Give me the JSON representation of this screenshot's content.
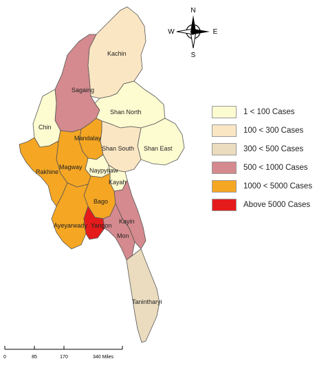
{
  "compass": {
    "n": "N",
    "s": "S",
    "e": "E",
    "w": "W"
  },
  "legend": [
    {
      "label": "1 < 100 Cases",
      "color": "#fdfbd0"
    },
    {
      "label": "100 < 300 Cases",
      "color": "#fbe6c4"
    },
    {
      "label": "300 < 500 Cases",
      "color": "#ebdcbf"
    },
    {
      "label": "500 < 1000 Cases",
      "color": "#d48a8e"
    },
    {
      "label": "1000 < 5000 Cases",
      "color": "#f5a623"
    },
    {
      "label": "Above 5000 Cases",
      "color": "#e51b1b"
    }
  ],
  "regions": {
    "kachin": {
      "label": "Kachin",
      "color": "#fbe6c4"
    },
    "sagaing": {
      "label": "Sagaing",
      "color": "#d48a8e"
    },
    "chin": {
      "label": "Chin",
      "color": "#fdfbd0"
    },
    "rakhine": {
      "label": "Rakhine",
      "color": "#f5a623"
    },
    "magway": {
      "label": "Magway",
      "color": "#f5a623"
    },
    "mandalay": {
      "label": "Mandalay",
      "color": "#f5a623"
    },
    "shan_north": {
      "label": "Shan North",
      "color": "#fdfbd0"
    },
    "shan_south": {
      "label": "Shan South",
      "color": "#fbe6c4"
    },
    "shan_east": {
      "label": "Shan East",
      "color": "#fdfbd0"
    },
    "naypyitaw": {
      "label": "Naypyitaw",
      "color": "#fdfbd0"
    },
    "kayah": {
      "label": "Kayah",
      "color": "#fdfbd0"
    },
    "bago": {
      "label": "Bago",
      "color": "#f5a623"
    },
    "ayeyarwady": {
      "label": "Ayeyarwady",
      "color": "#f5a623"
    },
    "yangon": {
      "label": "Yangon",
      "color": "#e51b1b"
    },
    "kayin": {
      "label": "Kayin",
      "color": "#d48a8e"
    },
    "mon": {
      "label": "Mon",
      "color": "#d48a8e"
    },
    "tanintharyi": {
      "label": "Tanintharyi",
      "color": "#ebdcbf"
    }
  },
  "scale": {
    "ticks": [
      "0",
      "85",
      "170",
      "340 Miles"
    ]
  }
}
